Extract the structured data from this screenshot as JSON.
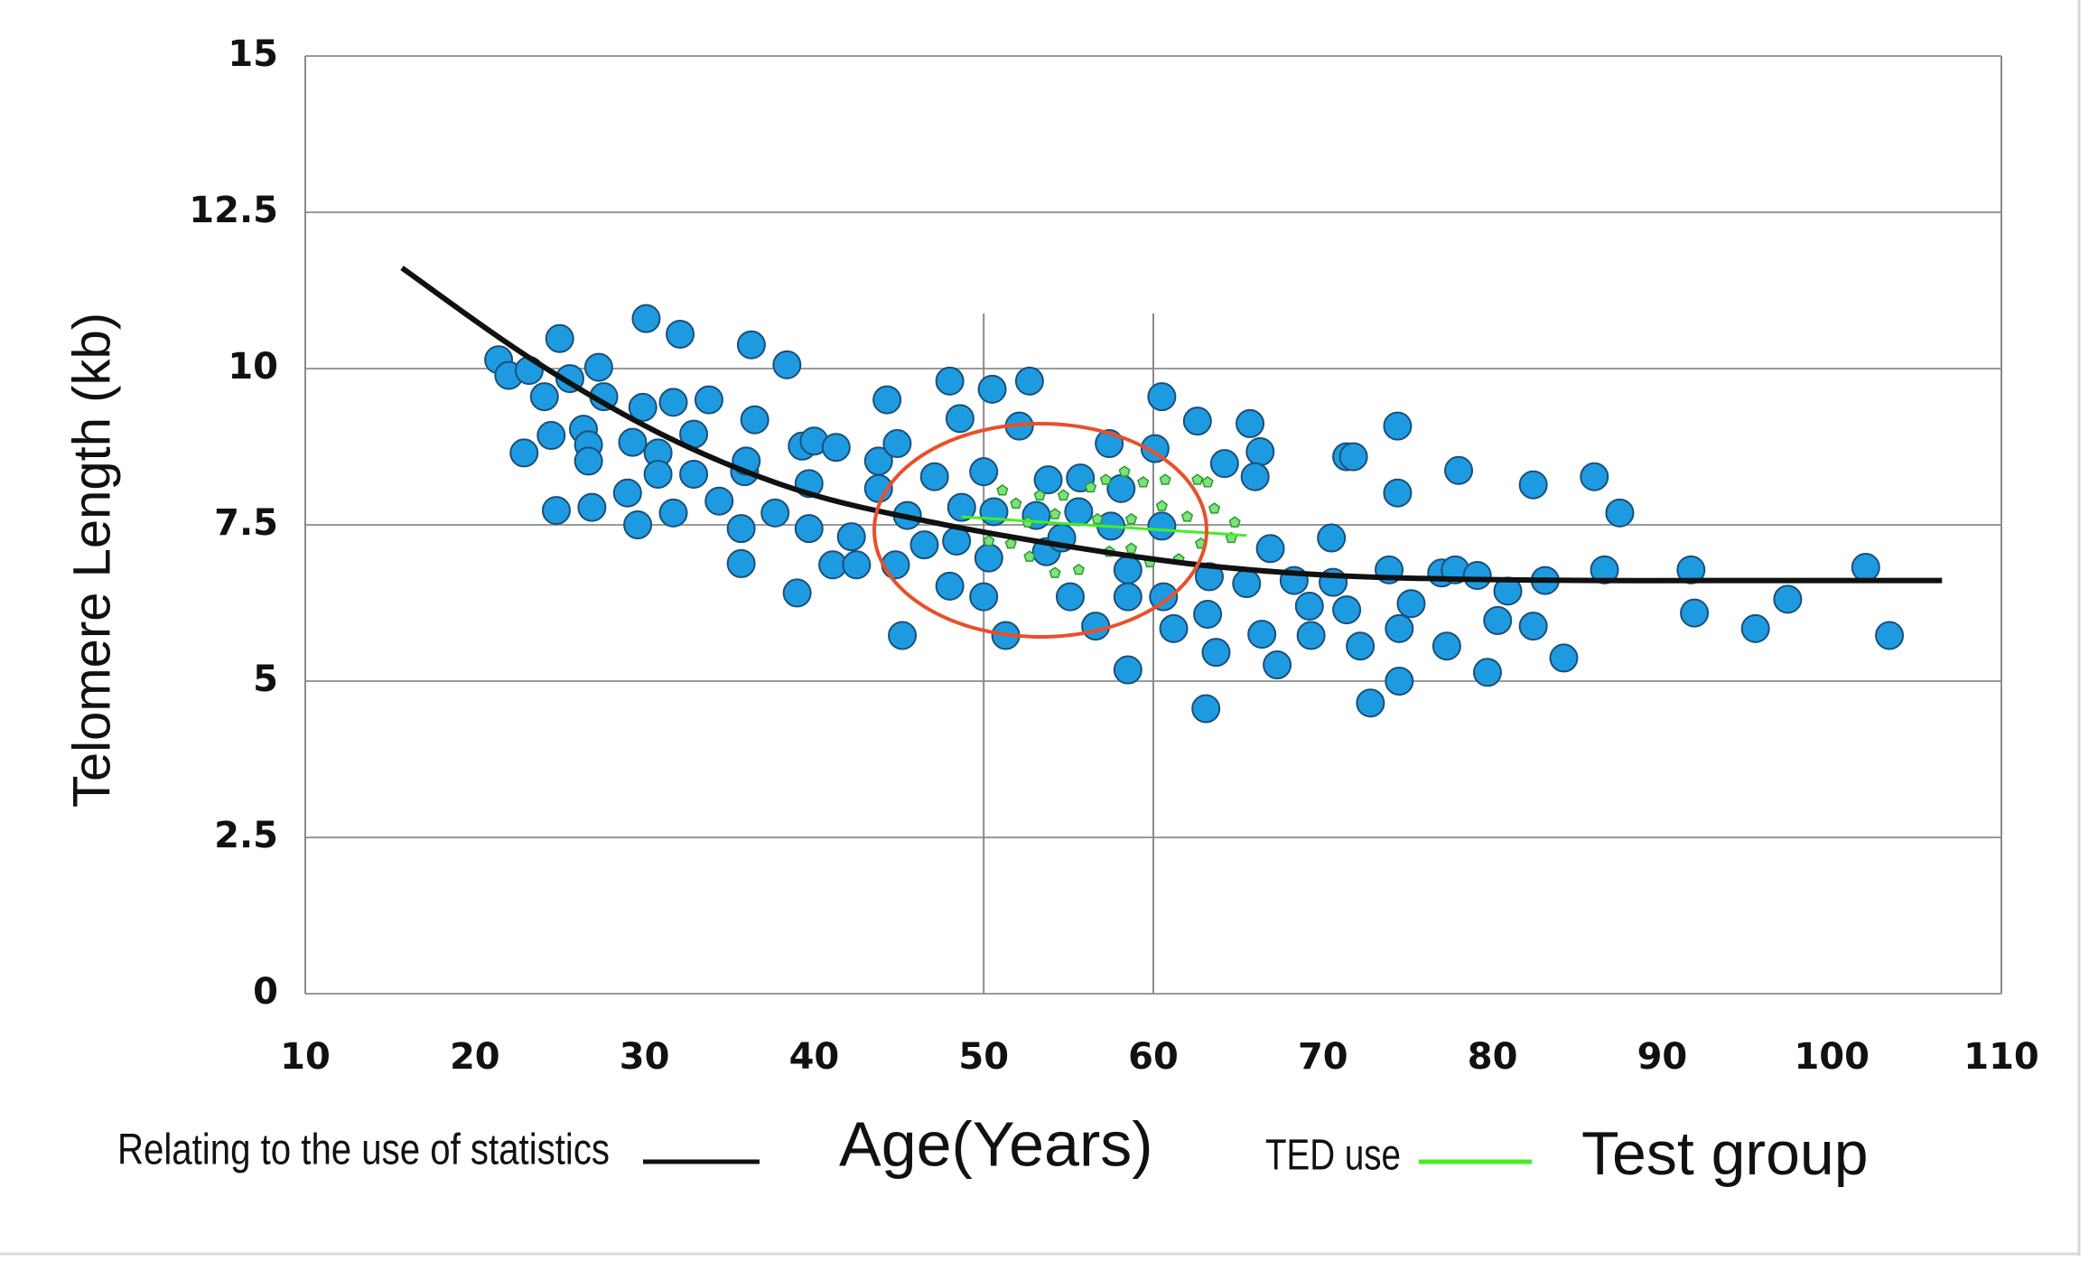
{
  "chart_data": {
    "type": "scatter",
    "x_label": "Age(Years)",
    "y_label": "Telomere Length (kb)",
    "annotation": "Test group",
    "xlim": [
      10,
      110
    ],
    "ylim": [
      0,
      15
    ],
    "xticks": [
      10,
      20,
      30,
      40,
      50,
      60,
      70,
      80,
      90,
      100,
      110
    ],
    "yticks": [
      0,
      2.5,
      5,
      7.5,
      10,
      12.5,
      15
    ],
    "grid": true,
    "series": [
      {
        "type": "scatter",
        "color": "#1e9be0",
        "x": [
          21.4,
          22.0,
          23.2,
          22.9,
          24.1,
          25.0,
          24.5,
          24.8,
          25.6,
          26.4,
          26.7,
          26.7,
          26.9,
          27.3,
          27.6,
          29.0,
          29.3,
          29.6,
          30.1,
          29.9,
          30.8,
          30.8,
          31.7,
          31.7,
          32.1,
          32.9,
          32.9,
          33.8,
          34.4,
          35.7,
          35.7,
          35.9,
          36.0,
          36.3,
          36.5,
          37.7,
          38.4,
          39.0,
          39.3,
          39.7,
          39.7,
          40.0,
          41.3,
          41.1,
          42.2,
          42.5,
          43.8,
          43.8,
          44.3,
          44.9,
          44.8,
          45.2,
          45.5,
          46.5,
          47.1,
          48.0,
          48.0,
          48.4,
          48.6,
          48.7,
          50.0,
          50.0,
          50.3,
          50.5,
          50.6,
          51.3,
          52.1,
          52.7,
          53.1,
          53.8,
          53.7,
          54.6,
          55.1,
          55.6,
          55.7,
          56.6,
          57.4,
          57.5,
          58.1,
          58.5,
          58.5,
          58.5,
          60.5,
          60.1,
          60.5,
          60.6,
          61.2,
          62.6,
          63.1,
          63.3,
          63.2,
          63.7,
          64.2,
          65.5,
          65.7,
          66.3,
          66.0,
          66.4,
          66.9,
          67.3,
          68.3,
          69.2,
          69.3,
          70.5,
          70.6,
          71.4,
          71.4,
          71.8,
          72.2,
          72.8,
          73.9,
          74.4,
          74.4,
          74.5,
          74.5,
          75.2,
          77.0,
          77.3,
          77.8,
          78.0,
          79.1,
          79.7,
          80.3,
          80.9,
          82.4,
          82.4,
          83.1,
          84.2,
          86.0,
          86.6,
          87.5,
          91.7,
          91.9,
          95.5,
          97.4,
          102.0,
          103.4
        ],
        "values": [
          10.14,
          9.89,
          9.97,
          8.65,
          9.55,
          10.48,
          8.93,
          7.73,
          9.84,
          9.03,
          8.78,
          8.52,
          7.78,
          10.02,
          9.55,
          8.01,
          8.82,
          7.5,
          10.8,
          9.38,
          8.65,
          8.31,
          9.46,
          7.69,
          10.55,
          8.95,
          8.31,
          9.5,
          7.88,
          6.88,
          7.44,
          8.35,
          8.52,
          10.38,
          9.18,
          7.69,
          10.06,
          6.41,
          8.76,
          8.16,
          7.44,
          8.84,
          8.74,
          6.86,
          7.31,
          6.86,
          8.08,
          8.52,
          9.5,
          8.8,
          6.86,
          5.73,
          7.65,
          7.18,
          8.27,
          9.8,
          6.52,
          7.24,
          9.2,
          7.78,
          6.35,
          8.35,
          6.97,
          9.67,
          7.71,
          5.73,
          9.08,
          9.8,
          7.65,
          8.22,
          7.07,
          7.29,
          6.35,
          7.71,
          8.25,
          5.88,
          8.8,
          7.48,
          8.08,
          6.78,
          5.18,
          6.35,
          9.55,
          8.72,
          7.48,
          6.35,
          5.84,
          9.16,
          4.56,
          6.67,
          6.07,
          5.46,
          8.48,
          6.56,
          9.12,
          8.67,
          8.27,
          5.75,
          7.12,
          5.26,
          6.61,
          6.2,
          5.73,
          7.29,
          6.58,
          6.14,
          8.59,
          8.59,
          5.56,
          4.65,
          6.78,
          9.08,
          8.01,
          5.84,
          5.0,
          6.24,
          6.73,
          5.56,
          6.78,
          8.37,
          6.69,
          5.14,
          5.97,
          6.44,
          5.88,
          8.14,
          6.61,
          5.37,
          8.27,
          6.78,
          7.69,
          6.78,
          6.09,
          5.84,
          6.31,
          6.82,
          5.73
        ]
      },
      {
        "type": "pentagon",
        "color": "#7fe07f",
        "x": [
          51.1,
          51.9,
          53.3,
          54.7,
          56.3,
          57.2,
          58.3,
          59.4,
          60.7,
          62.6,
          63.2,
          52.6,
          54.2,
          56.7,
          58.7,
          60.5,
          62.0,
          63.6,
          64.8,
          50.3,
          51.6,
          52.7,
          54.2,
          55.6,
          57.4,
          58.7,
          59.8,
          61.5,
          62.8,
          64.6
        ],
        "values": [
          8.05,
          7.84,
          7.97,
          7.97,
          8.1,
          8.22,
          8.35,
          8.18,
          8.22,
          8.22,
          8.18,
          7.54,
          7.67,
          7.59,
          7.59,
          7.8,
          7.63,
          7.76,
          7.54,
          7.24,
          7.2,
          6.99,
          6.73,
          6.78,
          7.07,
          7.12,
          6.9,
          6.95,
          7.2,
          7.29
        ]
      },
      {
        "type": "line",
        "name": "Relating to the use of statistics",
        "color": "#111111",
        "x": [
          15.7,
          23.4,
          31.3,
          39.1,
          47.0,
          54.9,
          62.7,
          70.6,
          78.4,
          86.3,
          94.1,
          106.5
        ],
        "values": [
          11.61,
          10.14,
          8.91,
          8.05,
          7.54,
          7.16,
          6.86,
          6.69,
          6.63,
          6.61,
          6.61,
          6.61
        ]
      },
      {
        "type": "line",
        "name": "TED use",
        "color": "#44ee22",
        "x": [
          48.7,
          65.5
        ],
        "values": [
          7.63,
          7.33
        ]
      }
    ]
  }
}
